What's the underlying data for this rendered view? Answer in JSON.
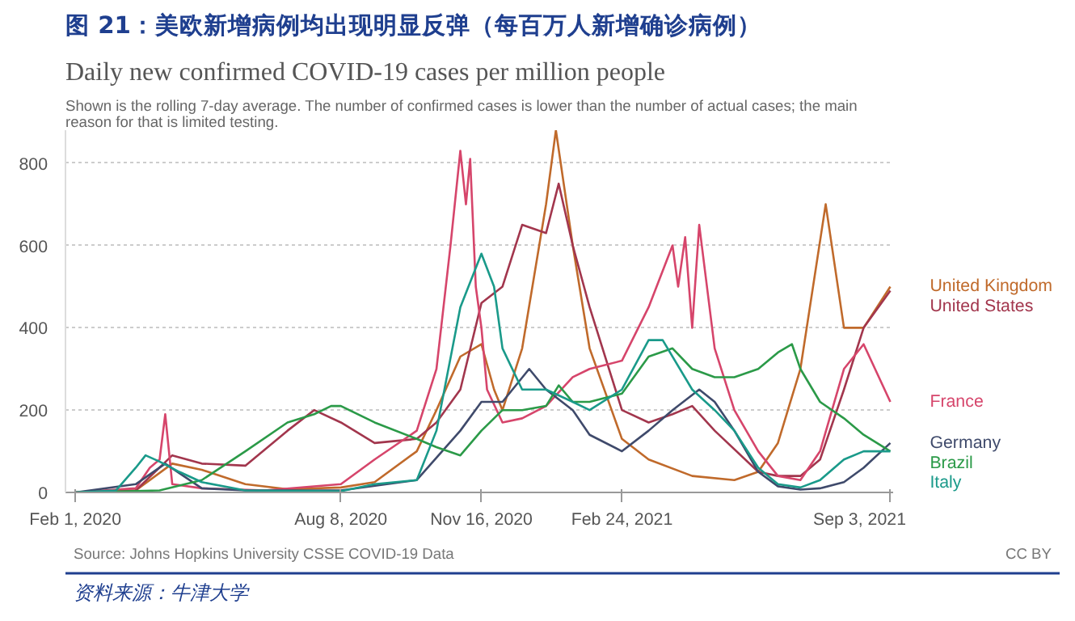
{
  "chart_data": {
    "type": "line",
    "title": "图 21：美欧新增病例均出现明显反弹（每百万人新增确诊病例）",
    "subtitle": "Daily new confirmed COVID-19 cases per million people",
    "annotations": [
      "Shown is the rolling 7-day average. The number of confirmed cases is lower than the number of actual cases; the main reason for that is limited testing.",
      "Source: Johns Hopkins University CSSE COVID-19 Data",
      "CC BY",
      "资料来源：牛津大学"
    ],
    "xlim": [
      "2020-01-25",
      "2021-09-05"
    ],
    "xticks": [
      {
        "value": "2020-02-01",
        "label": "Feb 1, 2020"
      },
      {
        "value": "2020-08-08",
        "label": "Aug 8, 2020"
      },
      {
        "value": "2020-11-16",
        "label": "Nov 16, 2020"
      },
      {
        "value": "2021-02-24",
        "label": "Feb 24, 2021"
      },
      {
        "value": "2021-09-03",
        "label": "Sep 3, 2021"
      }
    ],
    "ylim": [
      0,
      880
    ],
    "yticks": [
      0,
      200,
      400,
      600,
      800
    ],
    "grid": "y",
    "line_style": "solid",
    "marker": "none",
    "series": [
      {
        "name": "United Kingdom",
        "color": "#c06a2b",
        "x": [
          "2020-02-01",
          "2020-03-15",
          "2020-04-10",
          "2020-05-01",
          "2020-06-01",
          "2020-07-01",
          "2020-08-08",
          "2020-09-01",
          "2020-10-01",
          "2020-10-15",
          "2020-11-01",
          "2020-11-16",
          "2020-11-25",
          "2020-12-01",
          "2020-12-15",
          "2021-01-01",
          "2021-01-08",
          "2021-01-20",
          "2021-02-01",
          "2021-02-24",
          "2021-03-15",
          "2021-04-15",
          "2021-05-15",
          "2021-06-01",
          "2021-06-15",
          "2021-07-01",
          "2021-07-19",
          "2021-08-01",
          "2021-08-15",
          "2021-09-03"
        ],
        "values": [
          0,
          5,
          70,
          55,
          20,
          8,
          12,
          25,
          100,
          200,
          330,
          360,
          250,
          200,
          350,
          700,
          880,
          600,
          350,
          130,
          80,
          40,
          30,
          50,
          120,
          300,
          700,
          400,
          400,
          500
        ]
      },
      {
        "name": "United States",
        "color": "#a2364d",
        "x": [
          "2020-02-01",
          "2020-03-15",
          "2020-04-10",
          "2020-05-01",
          "2020-06-01",
          "2020-07-01",
          "2020-07-20",
          "2020-08-08",
          "2020-09-01",
          "2020-10-01",
          "2020-10-15",
          "2020-11-01",
          "2020-11-16",
          "2020-12-01",
          "2020-12-15",
          "2021-01-01",
          "2021-01-10",
          "2021-01-20",
          "2021-02-01",
          "2021-02-24",
          "2021-03-15",
          "2021-04-01",
          "2021-04-15",
          "2021-05-01",
          "2021-06-01",
          "2021-06-15",
          "2021-07-01",
          "2021-07-15",
          "2021-08-01",
          "2021-08-15",
          "2021-09-03"
        ],
        "values": [
          0,
          5,
          90,
          70,
          65,
          150,
          200,
          170,
          120,
          130,
          170,
          250,
          460,
          500,
          650,
          630,
          750,
          600,
          450,
          200,
          170,
          190,
          210,
          150,
          50,
          40,
          40,
          80,
          250,
          400,
          490
        ]
      },
      {
        "name": "France",
        "color": "#d6456b",
        "x": [
          "2020-02-01",
          "2020-03-15",
          "2020-03-25",
          "2020-04-01",
          "2020-04-05",
          "2020-04-10",
          "2020-05-01",
          "2020-06-15",
          "2020-08-08",
          "2020-09-01",
          "2020-10-01",
          "2020-10-15",
          "2020-10-25",
          "2020-11-01",
          "2020-11-05",
          "2020-11-08",
          "2020-11-12",
          "2020-11-16",
          "2020-11-20",
          "2020-12-01",
          "2020-12-15",
          "2021-01-01",
          "2021-01-20",
          "2021-02-01",
          "2021-02-24",
          "2021-03-15",
          "2021-04-01",
          "2021-04-05",
          "2021-04-10",
          "2021-04-15",
          "2021-04-20",
          "2021-05-01",
          "2021-05-15",
          "2021-06-01",
          "2021-06-15",
          "2021-07-01",
          "2021-07-15",
          "2021-08-01",
          "2021-08-15",
          "2021-09-03"
        ],
        "values": [
          0,
          10,
          60,
          80,
          190,
          20,
          10,
          5,
          20,
          80,
          150,
          300,
          600,
          830,
          700,
          810,
          500,
          400,
          250,
          170,
          180,
          210,
          280,
          300,
          320,
          450,
          600,
          500,
          620,
          400,
          650,
          350,
          200,
          100,
          40,
          30,
          100,
          300,
          360,
          220
        ]
      },
      {
        "name": "Germany",
        "color": "#3f4a6b",
        "x": [
          "2020-02-01",
          "2020-03-15",
          "2020-04-05",
          "2020-05-01",
          "2020-06-01",
          "2020-08-08",
          "2020-10-01",
          "2020-11-01",
          "2020-11-16",
          "2020-12-01",
          "2020-12-20",
          "2021-01-01",
          "2021-01-20",
          "2021-02-01",
          "2021-02-24",
          "2021-03-15",
          "2021-04-01",
          "2021-04-20",
          "2021-05-01",
          "2021-05-15",
          "2021-06-01",
          "2021-06-15",
          "2021-07-01",
          "2021-07-15",
          "2021-08-01",
          "2021-08-15",
          "2021-09-03"
        ],
        "values": [
          0,
          20,
          70,
          10,
          5,
          5,
          30,
          150,
          220,
          220,
          300,
          250,
          200,
          140,
          100,
          150,
          200,
          250,
          220,
          150,
          50,
          15,
          7,
          10,
          25,
          60,
          120
        ]
      },
      {
        "name": "Brazil",
        "color": "#2b9a48",
        "x": [
          "2020-02-01",
          "2020-04-01",
          "2020-05-01",
          "2020-06-01",
          "2020-07-01",
          "2020-07-20",
          "2020-08-01",
          "2020-08-08",
          "2020-09-01",
          "2020-10-01",
          "2020-10-15",
          "2020-11-01",
          "2020-11-16",
          "2020-12-01",
          "2020-12-15",
          "2021-01-01",
          "2021-01-10",
          "2021-01-20",
          "2021-02-01",
          "2021-02-24",
          "2021-03-15",
          "2021-04-01",
          "2021-04-15",
          "2021-05-01",
          "2021-05-15",
          "2021-06-01",
          "2021-06-15",
          "2021-06-25",
          "2021-07-01",
          "2021-07-15",
          "2021-08-01",
          "2021-08-15",
          "2021-09-03"
        ],
        "values": [
          0,
          5,
          30,
          100,
          170,
          190,
          210,
          210,
          170,
          130,
          110,
          90,
          150,
          200,
          200,
          210,
          260,
          220,
          220,
          240,
          330,
          350,
          300,
          280,
          280,
          300,
          340,
          360,
          300,
          220,
          180,
          140,
          100
        ]
      },
      {
        "name": "Italy",
        "color": "#1a9a8a",
        "x": [
          "2020-02-01",
          "2020-03-01",
          "2020-03-15",
          "2020-03-22",
          "2020-04-01",
          "2020-04-15",
          "2020-05-01",
          "2020-06-01",
          "2020-08-08",
          "2020-09-01",
          "2020-10-01",
          "2020-10-15",
          "2020-11-01",
          "2020-11-16",
          "2020-11-25",
          "2020-12-01",
          "2020-12-15",
          "2021-01-01",
          "2021-01-20",
          "2021-02-01",
          "2021-02-24",
          "2021-03-15",
          "2021-03-25",
          "2021-04-15",
          "2021-05-01",
          "2021-05-15",
          "2021-06-01",
          "2021-06-15",
          "2021-07-01",
          "2021-07-15",
          "2021-08-01",
          "2021-08-15",
          "2021-09-03"
        ],
        "values": [
          0,
          5,
          60,
          90,
          75,
          50,
          25,
          5,
          3,
          20,
          30,
          150,
          450,
          580,
          500,
          350,
          250,
          250,
          220,
          200,
          250,
          370,
          370,
          250,
          200,
          150,
          60,
          20,
          12,
          30,
          80,
          100,
          100
        ]
      }
    ]
  }
}
